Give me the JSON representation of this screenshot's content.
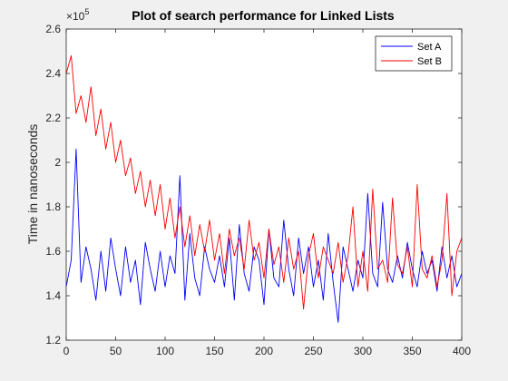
{
  "chart_data": {
    "type": "line",
    "title": "Plot of search performance for Linked Lists",
    "xlabel": "",
    "ylabel": "Time in nanoseconds",
    "y_exponent_label": "×10",
    "y_exponent": "5",
    "xlim": [
      0,
      400
    ],
    "ylim": [
      1.2,
      2.6
    ],
    "x_ticks": [
      0,
      50,
      100,
      150,
      200,
      250,
      300,
      350,
      400
    ],
    "y_ticks": [
      1.2,
      1.4,
      1.6,
      1.8,
      2.0,
      2.2,
      2.4,
      2.6
    ],
    "y_tick_labels": [
      "1.2",
      "1.4",
      "1.6",
      "1.8",
      "2",
      "2.2",
      "2.4",
      "2.6"
    ],
    "grid": false,
    "legend_position": "top-right",
    "series": [
      {
        "name": "Set A",
        "color": "#0000ff",
        "x": [
          0,
          5,
          10,
          15,
          20,
          25,
          30,
          35,
          40,
          45,
          50,
          55,
          60,
          65,
          70,
          75,
          80,
          85,
          90,
          95,
          100,
          105,
          110,
          115,
          120,
          125,
          130,
          135,
          140,
          145,
          150,
          155,
          160,
          165,
          170,
          175,
          180,
          185,
          190,
          195,
          200,
          205,
          210,
          215,
          220,
          225,
          230,
          235,
          240,
          245,
          250,
          255,
          260,
          265,
          270,
          275,
          280,
          285,
          290,
          295,
          300,
          305,
          310,
          315,
          320,
          325,
          330,
          335,
          340,
          345,
          350,
          355,
          360,
          365,
          370,
          375,
          380,
          385,
          390,
          395,
          400
        ],
        "values": [
          1.44,
          1.56,
          2.06,
          1.46,
          1.62,
          1.52,
          1.38,
          1.6,
          1.42,
          1.66,
          1.52,
          1.4,
          1.62,
          1.46,
          1.56,
          1.36,
          1.64,
          1.52,
          1.42,
          1.6,
          1.44,
          1.58,
          1.5,
          1.94,
          1.38,
          1.68,
          1.48,
          1.4,
          1.62,
          1.52,
          1.46,
          1.58,
          1.44,
          1.66,
          1.38,
          1.72,
          1.5,
          1.42,
          1.62,
          1.56,
          1.36,
          1.7,
          1.48,
          1.44,
          1.74,
          1.52,
          1.4,
          1.66,
          1.5,
          1.62,
          1.44,
          1.56,
          1.38,
          1.68,
          1.46,
          1.28,
          1.62,
          1.52,
          1.42,
          1.56,
          1.48,
          1.86,
          1.5,
          1.44,
          1.82,
          1.52,
          1.46,
          1.58,
          1.48,
          1.64,
          1.52,
          1.44,
          1.6,
          1.5,
          1.56,
          1.42,
          1.62,
          1.48,
          1.58,
          1.44,
          1.5
        ]
      },
      {
        "name": "Set B",
        "color": "#ff0000",
        "x": [
          0,
          5,
          10,
          15,
          20,
          25,
          30,
          35,
          40,
          45,
          50,
          55,
          60,
          65,
          70,
          75,
          80,
          85,
          90,
          95,
          100,
          105,
          110,
          115,
          120,
          125,
          130,
          135,
          140,
          145,
          150,
          155,
          160,
          165,
          170,
          175,
          180,
          185,
          190,
          195,
          200,
          205,
          210,
          215,
          220,
          225,
          230,
          235,
          240,
          245,
          250,
          255,
          260,
          265,
          270,
          275,
          280,
          285,
          290,
          295,
          300,
          305,
          310,
          315,
          320,
          325,
          330,
          335,
          340,
          345,
          350,
          355,
          360,
          365,
          370,
          375,
          380,
          385,
          390,
          395,
          400
        ],
        "values": [
          2.4,
          2.48,
          2.22,
          2.3,
          2.18,
          2.34,
          2.12,
          2.24,
          2.06,
          2.18,
          2.0,
          2.1,
          1.94,
          2.02,
          1.86,
          1.96,
          1.8,
          1.92,
          1.76,
          1.9,
          1.7,
          1.84,
          1.66,
          1.8,
          1.62,
          1.76,
          1.58,
          1.72,
          1.6,
          1.74,
          1.56,
          1.68,
          1.5,
          1.7,
          1.58,
          1.66,
          1.52,
          1.74,
          1.56,
          1.64,
          1.48,
          1.7,
          1.54,
          1.62,
          1.46,
          1.66,
          1.52,
          1.6,
          1.34,
          1.58,
          1.68,
          1.48,
          1.62,
          1.56,
          1.5,
          1.64,
          1.46,
          1.58,
          1.8,
          1.44,
          1.6,
          1.42,
          1.88,
          1.52,
          1.56,
          1.46,
          1.84,
          1.54,
          1.5,
          1.62,
          1.44,
          1.9,
          1.52,
          1.48,
          1.58,
          1.44,
          1.56,
          1.86,
          1.4,
          1.6,
          1.66
        ]
      }
    ]
  }
}
